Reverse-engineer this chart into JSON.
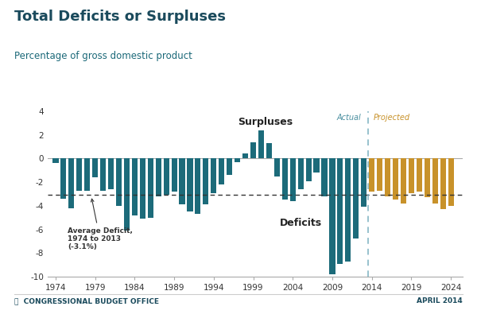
{
  "title": "Total Deficits or Surpluses",
  "subtitle": "Percentage of gross domestic product",
  "footer_left": "CONGRESSIONAL BUDGET OFFICE",
  "footer_right": "APRIL 2014",
  "average_deficit": -3.1,
  "average_label": "Average Deficit,\n1974 to 2013\n(-3.1%)",
  "actual_label": "Actual",
  "projected_label": "Projected",
  "surpluses_label": "Surpluses",
  "deficits_label": "Deficits",
  "split_year": 2014,
  "teal_color": "#1c6b7a",
  "gold_color": "#c8922a",
  "dashed_color": "#333333",
  "actual_color": "#4a8fa0",
  "projected_color": "#c8922a",
  "title_color": "#1a4a5c",
  "subtitle_color": "#1a6878",
  "footer_color": "#1a4a5c",
  "bg_color": "#ffffff",
  "ylim": [
    -10,
    4
  ],
  "yticks": [
    -10,
    -8,
    -6,
    -4,
    -2,
    0,
    2,
    4
  ],
  "xlim": [
    1973.0,
    2025.5
  ],
  "years": [
    1974,
    1975,
    1976,
    1977,
    1978,
    1979,
    1980,
    1981,
    1982,
    1983,
    1984,
    1985,
    1986,
    1987,
    1988,
    1989,
    1990,
    1991,
    1992,
    1993,
    1994,
    1995,
    1996,
    1997,
    1998,
    1999,
    2000,
    2001,
    2002,
    2003,
    2004,
    2005,
    2006,
    2007,
    2008,
    2009,
    2010,
    2011,
    2012,
    2013,
    2014,
    2015,
    2016,
    2017,
    2018,
    2019,
    2020,
    2021,
    2022,
    2023,
    2024
  ],
  "values": [
    -0.4,
    -3.4,
    -4.2,
    -2.7,
    -2.7,
    -1.6,
    -2.7,
    -2.6,
    -4.0,
    -6.1,
    -4.8,
    -5.1,
    -5.0,
    -3.2,
    -3.1,
    -2.8,
    -3.9,
    -4.5,
    -4.7,
    -3.9,
    -2.9,
    -2.2,
    -1.4,
    -0.3,
    0.4,
    1.4,
    2.4,
    1.3,
    -1.5,
    -3.5,
    -3.6,
    -2.6,
    -1.9,
    -1.2,
    -3.2,
    -9.8,
    -8.9,
    -8.7,
    -6.8,
    -4.1,
    -2.8,
    -2.7,
    -3.2,
    -3.5,
    -3.8,
    -2.9,
    -2.8,
    -3.3,
    -3.8,
    -4.3,
    -4.0
  ],
  "xtick_years": [
    1974,
    1979,
    1984,
    1989,
    1994,
    1999,
    2004,
    2009,
    2014,
    2019,
    2024
  ]
}
